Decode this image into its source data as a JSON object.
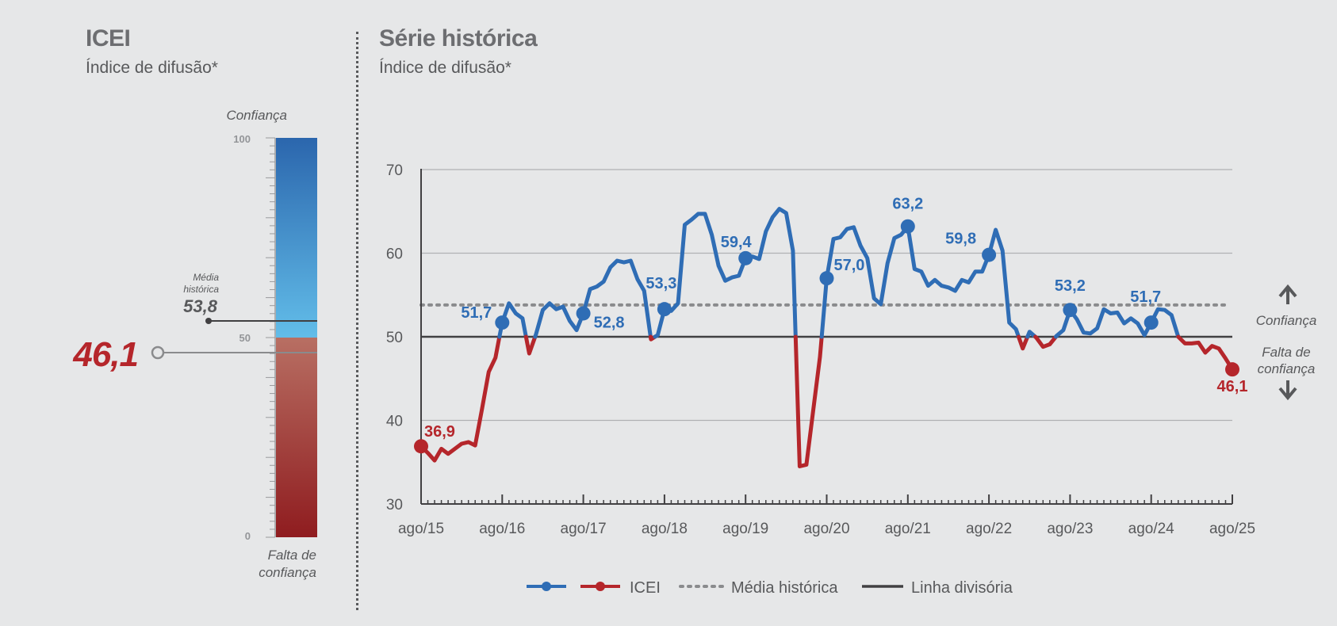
{
  "left_panel": {
    "title": "ICEI",
    "subtitle": "Índice de difusão*",
    "top_label": "Confiança",
    "bottom_label_1": "Falta de",
    "bottom_label_2": "confiança",
    "scale_ticks": [
      "100",
      "50",
      "0"
    ],
    "media_label_1": "Média",
    "media_label_2": "histórica",
    "media_value": "53,8",
    "current_value": "46,1",
    "current_value_num": 46.1,
    "media_value_num": 53.8
  },
  "right_panel": {
    "title": "Série histórica",
    "subtitle": "Índice de difusão*",
    "confidence_label": "Confiança",
    "lack_label_1": "Falta de",
    "lack_label_2": "confiança",
    "legend": {
      "icei": "ICEI",
      "media": "Média histórica",
      "linha": "Linha divisória"
    }
  },
  "colors": {
    "blue": "#2f6db5",
    "red": "#b5262b",
    "grey_text": "#58595b",
    "bar_top": "#2b66ad",
    "bar_mid": "#62bde9",
    "bar_low_top": "#b86f63",
    "bar_bottom": "#8f1c1f"
  },
  "chart_data": {
    "type": "line",
    "title": "Série histórica",
    "subtitle": "Índice de difusão*",
    "ylim": [
      30,
      70
    ],
    "yticks": [
      "30",
      "40",
      "50",
      "60",
      "70"
    ],
    "x_range": [
      "2015-08",
      "2025-08"
    ],
    "xticks": [
      "ago/15",
      "ago/16",
      "ago/17",
      "ago/18",
      "ago/19",
      "ago/20",
      "ago/21",
      "ago/22",
      "ago/23",
      "ago/24",
      "ago/25"
    ],
    "media_historica": 53.8,
    "linha_divisoria": 50,
    "series": [
      {
        "name": "ICEI",
        "start": "2015-08",
        "frequency": "monthly",
        "values": [
          36.9,
          36.1,
          35.2,
          36.6,
          36.0,
          36.6,
          37.2,
          37.4,
          37.0,
          41.3,
          45.8,
          47.5,
          51.7,
          54.0,
          52.8,
          52.2,
          48.0,
          50.3,
          53.2,
          54.0,
          53.3,
          53.6,
          51.9,
          50.8,
          52.8,
          55.7,
          56.0,
          56.6,
          58.3,
          59.1,
          58.9,
          59.1,
          56.9,
          55.5,
          49.7,
          50.2,
          53.3,
          53.1,
          54.0,
          63.4,
          64.0,
          64.7,
          64.7,
          62.2,
          58.5,
          56.7,
          57.1,
          57.3,
          59.4,
          59.6,
          59.3,
          62.6,
          64.3,
          65.3,
          64.8,
          60.3,
          34.5,
          34.7,
          41.2,
          47.6,
          57.0,
          61.7,
          61.9,
          62.9,
          63.1,
          60.9,
          59.4,
          54.6,
          53.9,
          58.8,
          61.8,
          62.2,
          63.2,
          58.1,
          57.8,
          56.1,
          56.8,
          56.1,
          55.9,
          55.5,
          56.8,
          56.5,
          57.8,
          57.8,
          59.8,
          62.8,
          60.3,
          51.7,
          50.9,
          48.6,
          50.6,
          49.9,
          48.8,
          49.1,
          50.1,
          50.8,
          53.2,
          52.1,
          50.5,
          50.4,
          51.0,
          53.3,
          52.8,
          52.9,
          51.6,
          52.2,
          51.6,
          50.2,
          51.7,
          53.3,
          53.2,
          52.6,
          50.0,
          49.2,
          49.2,
          49.3,
          48.1,
          48.9,
          48.6,
          47.4,
          46.1
        ]
      }
    ],
    "annotations": [
      {
        "date": "2015-08",
        "value": "36,9",
        "color": "red"
      },
      {
        "date": "2016-08",
        "value": "51,7",
        "color": "blue"
      },
      {
        "date": "2017-08",
        "value": "52,8",
        "color": "blue"
      },
      {
        "date": "2018-08",
        "value": "53,3",
        "color": "blue"
      },
      {
        "date": "2019-08",
        "value": "59,4",
        "color": "blue"
      },
      {
        "date": "2020-08",
        "value": "57,0",
        "color": "blue"
      },
      {
        "date": "2021-08",
        "value": "63,2",
        "color": "blue"
      },
      {
        "date": "2022-08",
        "value": "59,8",
        "color": "blue"
      },
      {
        "date": "2023-08",
        "value": "53,2",
        "color": "blue"
      },
      {
        "date": "2024-08",
        "value": "51,7",
        "color": "blue"
      },
      {
        "date": "2025-08",
        "value": "46,1",
        "color": "red"
      }
    ]
  }
}
